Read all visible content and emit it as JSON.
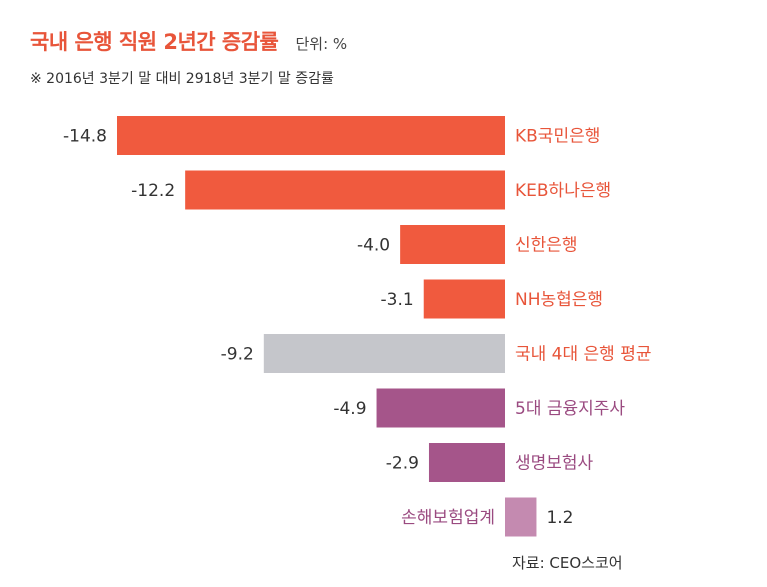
{
  "header": {
    "title": "국내 은행 직원 2년간 증감률",
    "unit": "단위: %",
    "subtitle": "※ 2016년 3분기 말 대비 2918년 3분기 말 증감률"
  },
  "source": "자료: CEO스코어",
  "colors": {
    "bank": "#f05a3e",
    "average": "#c5c6cb",
    "finance": "#a5558a",
    "insurance_nonlife": "#c48ab0",
    "title": "#e8553a",
    "bank_label": "#e8553a",
    "finance_label": "#9a4a80"
  },
  "chart_data": {
    "type": "bar",
    "orientation": "horizontal",
    "categories": [
      "KB국민은행",
      "KEB하나은행",
      "신한은행",
      "NH농협은행",
      "국내 4대 은행 평균",
      "5대 금융지주사",
      "생명보험사",
      "손해보험업계"
    ],
    "values": [
      -14.8,
      -12.2,
      -4.0,
      -3.1,
      -9.2,
      -4.9,
      -2.9,
      1.2
    ],
    "value_labels": [
      "-14.8",
      "-12.2",
      "-4.0",
      "-3.1",
      "-9.2",
      "-4.9",
      "-2.9",
      "1.2"
    ],
    "bar_colors": [
      "#f05a3e",
      "#f05a3e",
      "#f05a3e",
      "#f05a3e",
      "#c5c6cb",
      "#a5558a",
      "#a5558a",
      "#c48ab0"
    ],
    "label_colors": [
      "#e8553a",
      "#e8553a",
      "#e8553a",
      "#e8553a",
      "#e8553a",
      "#9a4a80",
      "#9a4a80",
      "#9a4a80"
    ],
    "xlim": [
      -14.8,
      1.2
    ],
    "grid": false
  }
}
